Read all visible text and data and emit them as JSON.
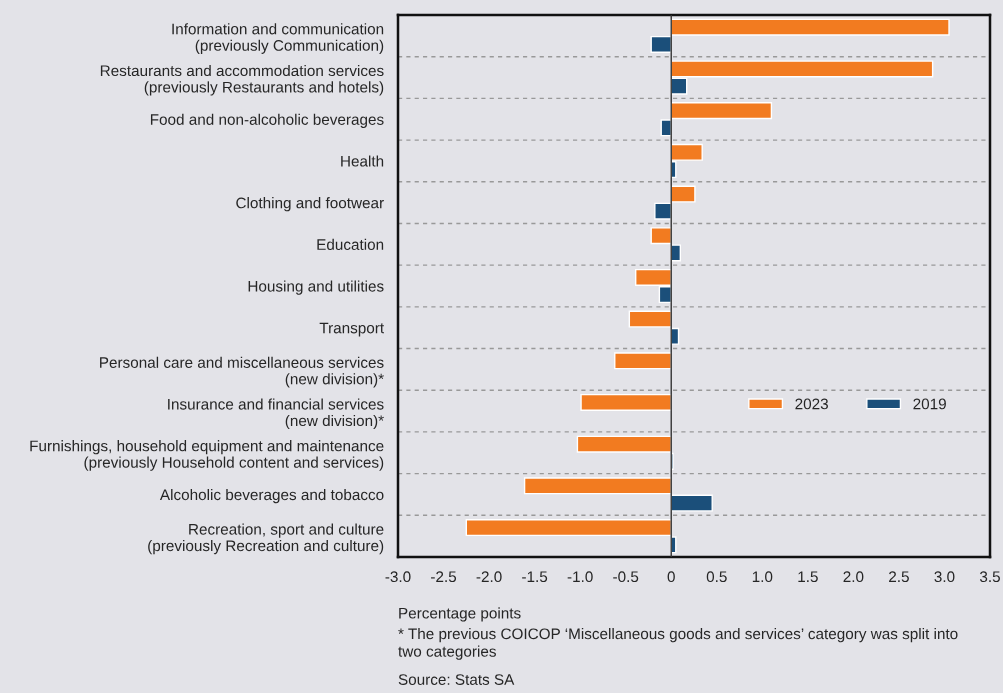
{
  "chart_data": {
    "type": "bar",
    "orientation": "horizontal",
    "categories": [
      "Information and communication\n(previously Communication)",
      "Restaurants and accommodation services\n(previously Restaurants and hotels)",
      "Food and non-alcoholic beverages",
      "Health",
      "Clothing and footwear",
      "Education",
      "Housing and utilities",
      "Transport",
      "Personal care and miscellaneous services\n(new division)*",
      "Insurance and financial services\n(new division)*",
      "Furnishings, household equipment and maintenance\n(previously Household content and services)",
      "Alcoholic beverages and tobacco",
      "Recreation, sport and culture\n(previously Recreation and culture)"
    ],
    "series": [
      {
        "name": "2023",
        "color": "#f27b20",
        "values": [
          3.05,
          2.87,
          1.1,
          0.34,
          0.26,
          -0.22,
          -0.39,
          -0.46,
          -0.62,
          -0.99,
          -1.03,
          -1.61,
          -2.25
        ]
      },
      {
        "name": "2019",
        "color": "#1b4f7a",
        "values": [
          -0.22,
          0.17,
          -0.11,
          0.05,
          -0.18,
          0.1,
          -0.13,
          0.08,
          null,
          null,
          0.02,
          0.45,
          0.05
        ]
      }
    ],
    "xlim": [
      -3.0,
      3.5
    ],
    "xticks": [
      {
        "value": -3.0,
        "label": "-3.0"
      },
      -2.5,
      {
        "value": -2.0,
        "label": "-2.0"
      },
      -1.5,
      {
        "value": -1.0,
        "label": "-1.0"
      },
      -0.5,
      0,
      0.5,
      {
        "value": 1.0,
        "label": "1.0"
      },
      1.5,
      {
        "value": 2.0,
        "label": "2.0"
      },
      2.5,
      {
        "value": 3.0,
        "label": "3.0"
      },
      3.5
    ],
    "xlabel": "Percentage points",
    "annotations": [
      "* The previous COICOP ‘Miscellaneous goods and services’ category was split into\ntwo categories",
      "Source: Stats SA"
    ],
    "grid": "y",
    "legend": "right"
  }
}
